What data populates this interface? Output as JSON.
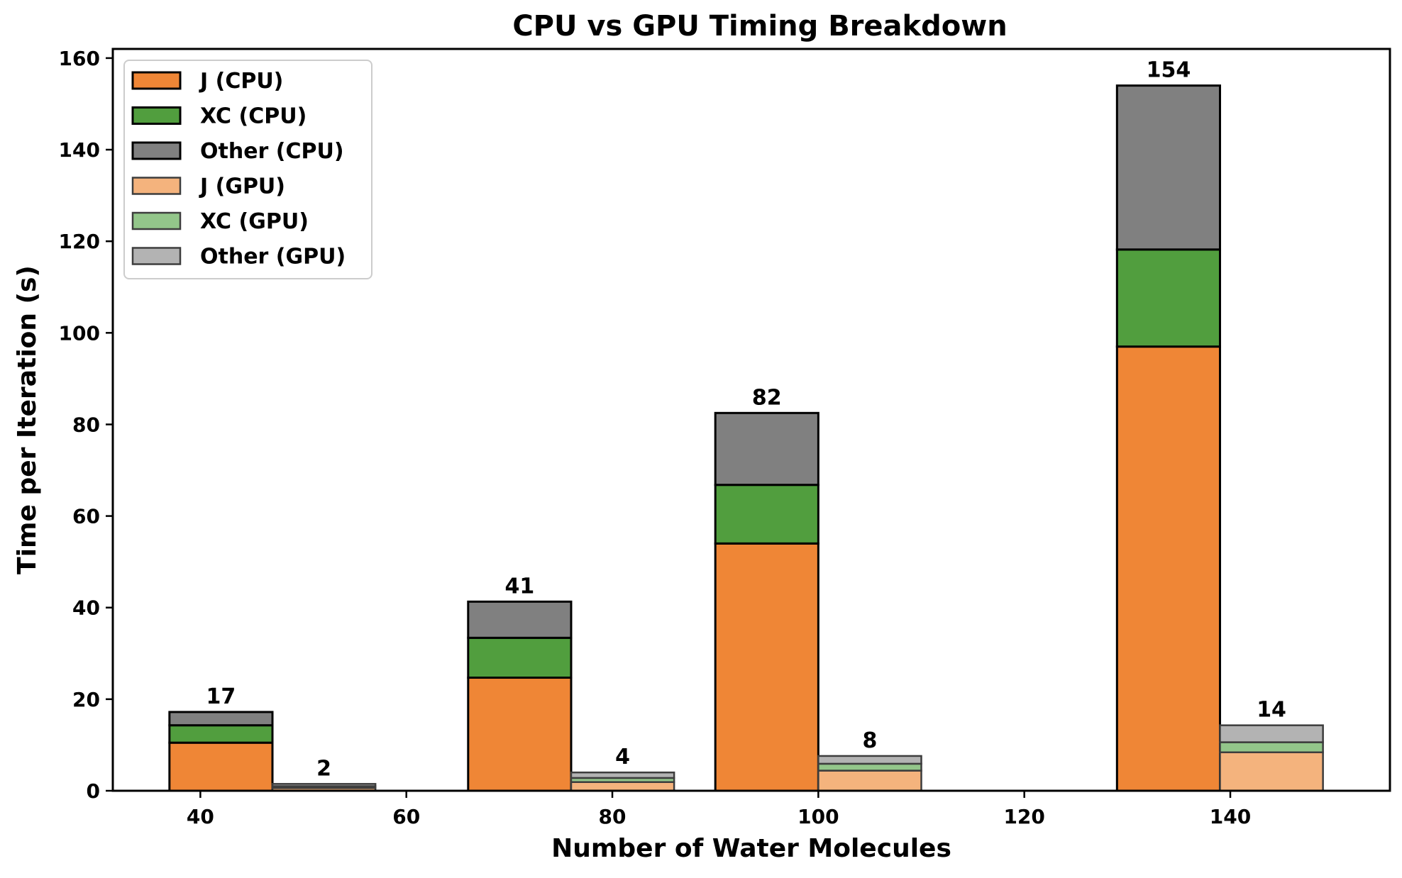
{
  "chart_data": {
    "type": "bar",
    "stacked": true,
    "title": "CPU vs GPU Timing Breakdown",
    "xlabel": "Number of Water Molecules",
    "ylabel": "Time per Iteration (s)",
    "xlim": [
      31.5,
      155.5
    ],
    "ylim": [
      0,
      162
    ],
    "xticks": [
      40,
      60,
      80,
      100,
      120,
      140
    ],
    "yticks": [
      0,
      20,
      40,
      60,
      80,
      100,
      120,
      140,
      160
    ],
    "grid": false,
    "legend_position": "upper-left",
    "groups": [
      {
        "x": 40,
        "cpu": {
          "x_range": [
            37,
            47
          ],
          "J": 10.5,
          "XC": 3.8,
          "Other": 2.9,
          "total_label": "17"
        },
        "gpu": {
          "x_range": [
            47,
            57
          ],
          "J": 0.6,
          "XC": 0.4,
          "Other": 0.5,
          "total_label": "2"
        }
      },
      {
        "x": 70,
        "cpu": {
          "x_range": [
            66,
            76
          ],
          "J": 24.7,
          "XC": 8.7,
          "Other": 7.9,
          "total_label": "41"
        },
        "gpu": {
          "x_range": [
            76,
            86
          ],
          "J": 1.9,
          "XC": 0.9,
          "Other": 1.2,
          "total_label": "4"
        }
      },
      {
        "x": 100,
        "cpu": {
          "x_range": [
            90,
            100
          ],
          "J": 54,
          "XC": 12.8,
          "Other": 15.7,
          "total_label": "82"
        },
        "gpu": {
          "x_range": [
            100,
            110
          ],
          "J": 4.4,
          "XC": 1.5,
          "Other": 1.7,
          "total_label": "8"
        }
      },
      {
        "x": 140,
        "cpu": {
          "x_range": [
            129,
            139
          ],
          "J": 97,
          "XC": 21.2,
          "Other": 35.8,
          "total_label": "154"
        },
        "gpu": {
          "x_range": [
            139,
            149
          ],
          "J": 8.4,
          "XC": 2.2,
          "Other": 3.7,
          "total_label": "14"
        }
      }
    ],
    "series": [
      {
        "name": "J (CPU)",
        "component": "J",
        "device": "cpu",
        "color": "#ef8636"
      },
      {
        "name": "XC (CPU)",
        "component": "XC",
        "device": "cpu",
        "color": "#519e3e"
      },
      {
        "name": "Other (CPU)",
        "component": "Other",
        "device": "cpu",
        "color": "#808080"
      },
      {
        "name": "J (GPU)",
        "component": "J",
        "device": "gpu",
        "color": "#f4b37d"
      },
      {
        "name": "XC (GPU)",
        "component": "XC",
        "device": "gpu",
        "color": "#93c68a"
      },
      {
        "name": "Other (GPU)",
        "component": "Other",
        "device": "gpu",
        "color": "#b3b3b3"
      }
    ]
  }
}
